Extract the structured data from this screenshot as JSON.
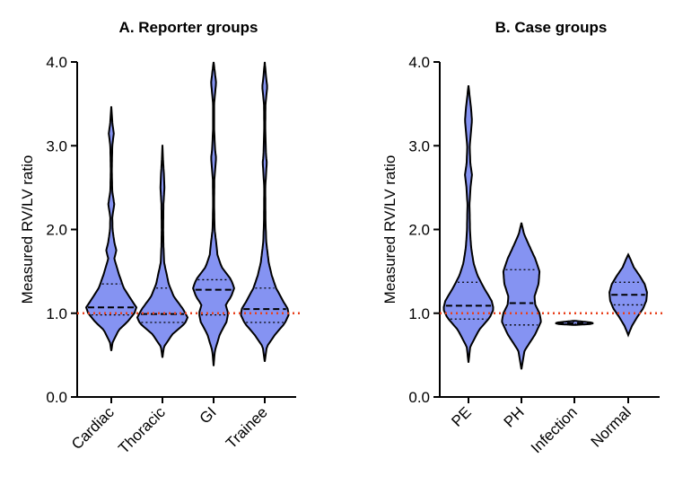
{
  "colors": {
    "violin_fill": "#8593f2",
    "reference_line": "#e8401c",
    "axis": "#000000"
  },
  "chart_data": [
    {
      "type": "violin",
      "title": "A. Reporter groups",
      "ylabel": "Measured RV/LV ratio",
      "ylim": [
        0,
        4
      ],
      "yticks": [
        "0.0",
        "1.0",
        "2.0",
        "3.0",
        "4.0"
      ],
      "reference_line": 1.0,
      "categories": [
        "Cardiac",
        "Thoracic",
        "GI",
        "Trainee"
      ],
      "violins": [
        {
          "name": "Cardiac",
          "median": 1.07,
          "q1": 0.98,
          "q3": 1.35,
          "profile": [
            [
              0.55,
              0
            ],
            [
              0.65,
              0.05
            ],
            [
              0.8,
              0.3
            ],
            [
              0.9,
              0.65
            ],
            [
              1.0,
              0.92
            ],
            [
              1.07,
              1.0
            ],
            [
              1.15,
              0.82
            ],
            [
              1.3,
              0.5
            ],
            [
              1.45,
              0.32
            ],
            [
              1.55,
              0.22
            ],
            [
              1.65,
              0.12
            ],
            [
              1.75,
              0.2
            ],
            [
              1.85,
              0.12
            ],
            [
              2.0,
              0.05
            ],
            [
              2.15,
              0.04
            ],
            [
              2.3,
              0.12
            ],
            [
              2.45,
              0.04
            ],
            [
              2.7,
              0.02
            ],
            [
              3.0,
              0.04
            ],
            [
              3.15,
              0.1
            ],
            [
              3.25,
              0.05
            ],
            [
              3.47,
              0
            ]
          ]
        },
        {
          "name": "Thoracic",
          "median": 0.99,
          "q1": 0.89,
          "q3": 1.3,
          "profile": [
            [
              0.47,
              0
            ],
            [
              0.6,
              0.06
            ],
            [
              0.75,
              0.4
            ],
            [
              0.88,
              0.9
            ],
            [
              0.95,
              1.0
            ],
            [
              1.05,
              0.82
            ],
            [
              1.2,
              0.45
            ],
            [
              1.35,
              0.25
            ],
            [
              1.45,
              0.18
            ],
            [
              1.6,
              0.07
            ],
            [
              1.8,
              0.04
            ],
            [
              2.0,
              0.03
            ],
            [
              2.3,
              0.04
            ],
            [
              2.5,
              0.08
            ],
            [
              2.65,
              0.06
            ],
            [
              2.85,
              0.02
            ],
            [
              3.01,
              0
            ]
          ]
        },
        {
          "name": "GI",
          "median": 1.28,
          "q1": 0.98,
          "q3": 1.4,
          "profile": [
            [
              0.37,
              0
            ],
            [
              0.55,
              0.05
            ],
            [
              0.75,
              0.25
            ],
            [
              0.9,
              0.52
            ],
            [
              1.0,
              0.58
            ],
            [
              1.1,
              0.48
            ],
            [
              1.2,
              0.7
            ],
            [
              1.3,
              0.82
            ],
            [
              1.4,
              0.7
            ],
            [
              1.55,
              0.32
            ],
            [
              1.7,
              0.15
            ],
            [
              1.8,
              0.12
            ],
            [
              2.0,
              0.04
            ],
            [
              2.3,
              0.02
            ],
            [
              2.6,
              0.03
            ],
            [
              2.85,
              0.1
            ],
            [
              2.95,
              0.06
            ],
            [
              3.2,
              0.02
            ],
            [
              3.5,
              0.02
            ],
            [
              3.75,
              0.1
            ],
            [
              3.85,
              0.06
            ],
            [
              4.0,
              0
            ]
          ]
        },
        {
          "name": "Trainee",
          "median": 1.05,
          "q1": 0.89,
          "q3": 1.3,
          "profile": [
            [
              0.42,
              0
            ],
            [
              0.6,
              0.08
            ],
            [
              0.75,
              0.42
            ],
            [
              0.88,
              0.8
            ],
            [
              0.98,
              0.95
            ],
            [
              1.05,
              0.92
            ],
            [
              1.15,
              0.72
            ],
            [
              1.3,
              0.45
            ],
            [
              1.45,
              0.28
            ],
            [
              1.6,
              0.16
            ],
            [
              1.75,
              0.1
            ],
            [
              1.85,
              0.06
            ],
            [
              2.1,
              0.03
            ],
            [
              2.5,
              0.02
            ],
            [
              2.8,
              0.08
            ],
            [
              2.9,
              0.05
            ],
            [
              3.2,
              0.02
            ],
            [
              3.5,
              0.03
            ],
            [
              3.7,
              0.1
            ],
            [
              3.8,
              0.06
            ],
            [
              4.0,
              0
            ]
          ]
        }
      ]
    },
    {
      "type": "violin",
      "title": "B. Case groups",
      "ylabel": "Measured RV/LV ratio",
      "ylim": [
        0,
        4
      ],
      "yticks": [
        "0.0",
        "1.0",
        "2.0",
        "3.0",
        "4.0"
      ],
      "reference_line": 1.0,
      "categories": [
        "PE",
        "PH",
        "Infection",
        "Normal"
      ],
      "violins": [
        {
          "name": "PE",
          "median": 1.09,
          "q1": 0.93,
          "q3": 1.37,
          "profile": [
            [
              0.41,
              0
            ],
            [
              0.6,
              0.07
            ],
            [
              0.8,
              0.42
            ],
            [
              0.95,
              0.85
            ],
            [
              1.05,
              1.0
            ],
            [
              1.15,
              0.92
            ],
            [
              1.3,
              0.62
            ],
            [
              1.45,
              0.36
            ],
            [
              1.6,
              0.2
            ],
            [
              1.8,
              0.1
            ],
            [
              2.0,
              0.06
            ],
            [
              2.3,
              0.04
            ],
            [
              2.5,
              0.08
            ],
            [
              2.65,
              0.14
            ],
            [
              2.8,
              0.07
            ],
            [
              3.0,
              0.05
            ],
            [
              3.3,
              0.14
            ],
            [
              3.45,
              0.1
            ],
            [
              3.72,
              0
            ]
          ]
        },
        {
          "name": "PH",
          "median": 1.12,
          "q1": 0.86,
          "q3": 1.52,
          "profile": [
            [
              0.33,
              0
            ],
            [
              0.55,
              0.12
            ],
            [
              0.75,
              0.55
            ],
            [
              0.9,
              0.78
            ],
            [
              1.0,
              0.72
            ],
            [
              1.1,
              0.55
            ],
            [
              1.2,
              0.52
            ],
            [
              1.35,
              0.68
            ],
            [
              1.5,
              0.72
            ],
            [
              1.65,
              0.55
            ],
            [
              1.8,
              0.32
            ],
            [
              1.95,
              0.1
            ],
            [
              2.08,
              0
            ]
          ]
        },
        {
          "name": "Infection",
          "median": 0.88,
          "q1": 0.87,
          "q3": 0.9,
          "profile": [
            [
              0.86,
              0
            ],
            [
              0.87,
              0.6
            ],
            [
              0.88,
              0.75
            ],
            [
              0.89,
              0.65
            ],
            [
              0.91,
              0
            ]
          ]
        },
        {
          "name": "Normal",
          "median": 1.22,
          "q1": 1.1,
          "q3": 1.37,
          "profile": [
            [
              0.74,
              0
            ],
            [
              0.85,
              0.15
            ],
            [
              0.95,
              0.35
            ],
            [
              1.05,
              0.58
            ],
            [
              1.15,
              0.72
            ],
            [
              1.25,
              0.75
            ],
            [
              1.35,
              0.65
            ],
            [
              1.45,
              0.45
            ],
            [
              1.55,
              0.22
            ],
            [
              1.65,
              0.08
            ],
            [
              1.7,
              0
            ]
          ]
        }
      ]
    }
  ]
}
